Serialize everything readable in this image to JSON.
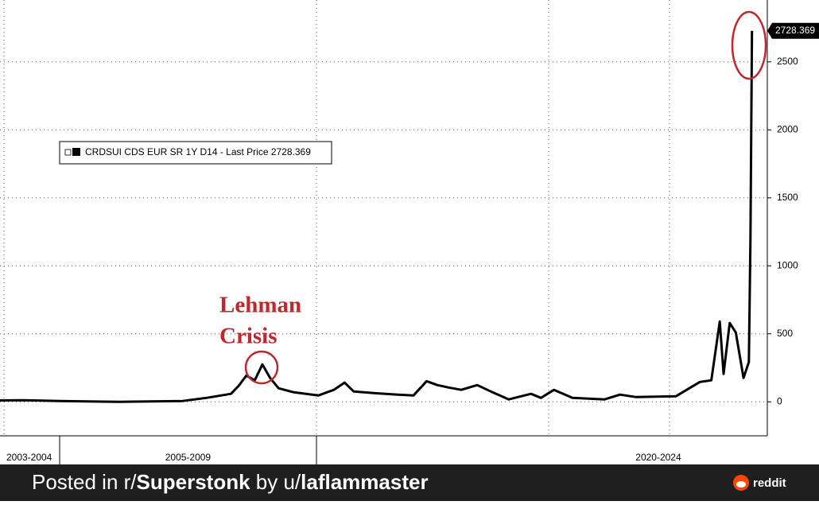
{
  "chart_data": {
    "type": "line",
    "annotation": "Lehman Crisis",
    "x": [
      0,
      3.1,
      7.8,
      15.5,
      23.8,
      26.9,
      30.1,
      31.1,
      32.1,
      33.2,
      34.2,
      35.2,
      36.3,
      38.3,
      41.5,
      43.5,
      44.9,
      46.1,
      48.7,
      51.8,
      53.9,
      55.6,
      57.0,
      58.5,
      60.1,
      62.2,
      64.2,
      66.3,
      69.2,
      70.5,
      72.2,
      74.6,
      78.8,
      80.8,
      82.9,
      88.1,
      91.2,
      92.7,
      93.8,
      94.3,
      95.1,
      95.9,
      96.9,
      97.6,
      97.8,
      98.0
    ],
    "series": [
      {
        "name": "CRDSUI CDS EUR SR 1Y D14 - Last Price 2728.369",
        "color": "#000000",
        "values": [
          10,
          12,
          6,
          0,
          6,
          29,
          59,
          117,
          193,
          158,
          275,
          176,
          100,
          70,
          47,
          88,
          141,
          76,
          64,
          53,
          47,
          152,
          123,
          105,
          88,
          123,
          70,
          18,
          59,
          29,
          88,
          29,
          18,
          53,
          35,
          41,
          146,
          158,
          591,
          205,
          580,
          509,
          176,
          293,
          1200,
          2728.369
        ]
      }
    ],
    "xlim": [
      0,
      100
    ],
    "xticks": [
      {
        "value": 3.8,
        "label": "2003-2004"
      },
      {
        "value": 24.5,
        "label": "2005-2009"
      },
      {
        "value": 85.8,
        "label": "2020-2024"
      }
    ],
    "ylim": [
      -250,
      2955
    ],
    "yticks": [
      0,
      500,
      1000,
      1500,
      2000,
      2500
    ],
    "grid": true,
    "footer": {
      "prefix": "Posted in r/",
      "subreddit": "Superstonk",
      "middle": " by u/",
      "user": "laflammaster",
      "brand": "reddit"
    }
  }
}
